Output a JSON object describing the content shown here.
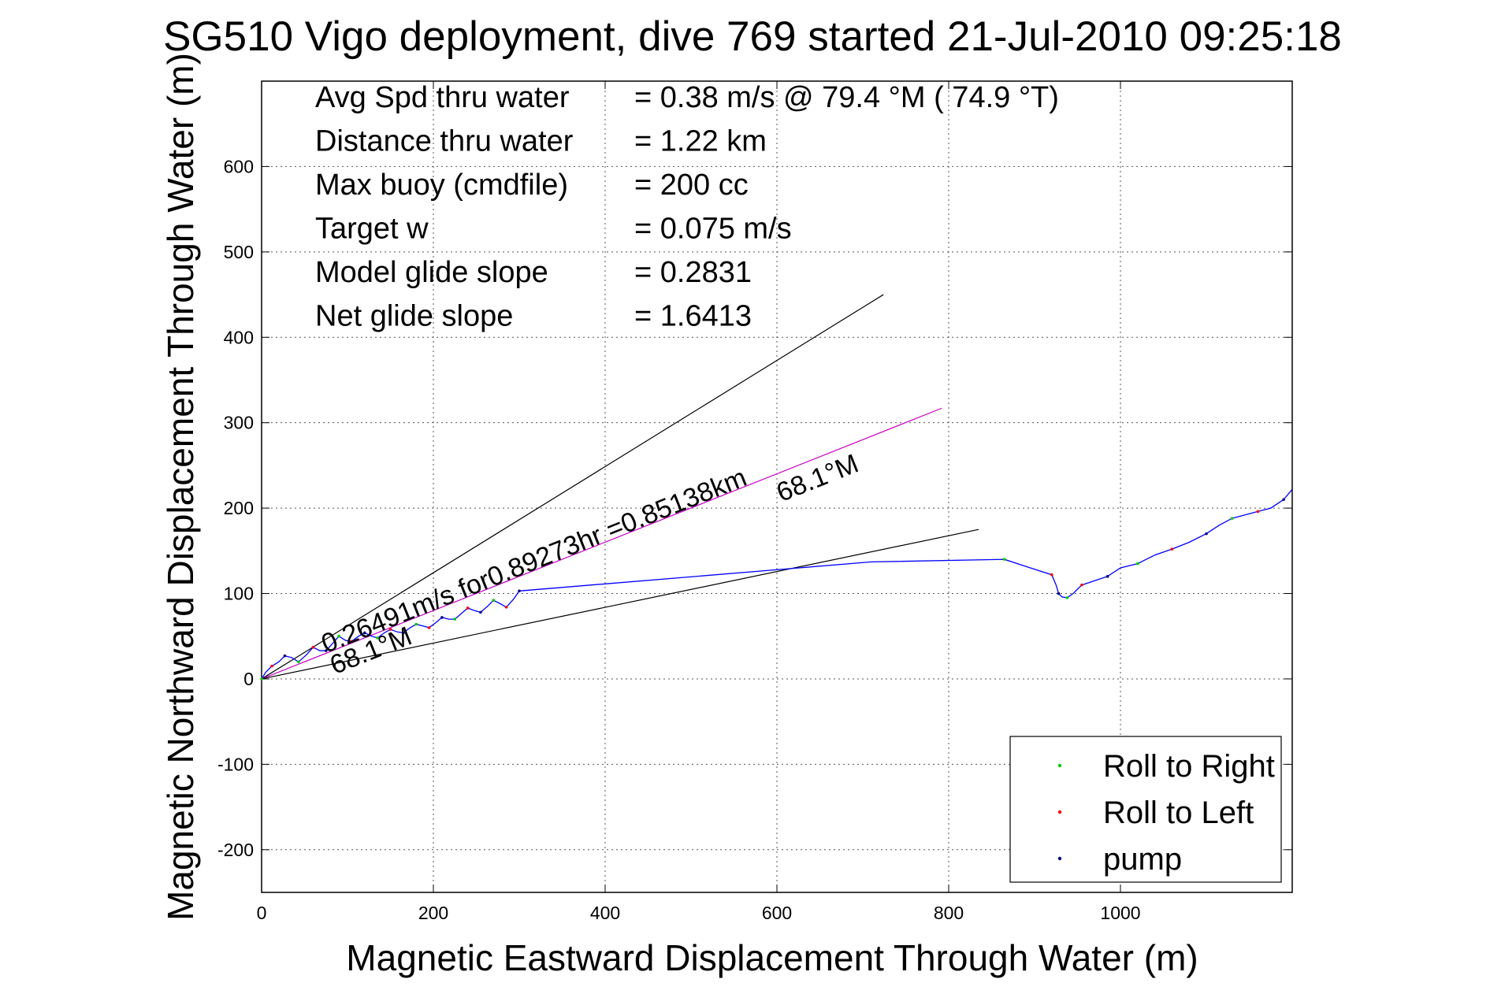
{
  "chart_data": {
    "type": "line",
    "title": "SG510 Vigo deployment, dive 769 started 21-Jul-2010 09:25:18",
    "xlabel": "Magnetic Eastward Displacement Through Water (m)",
    "ylabel": "Magnetic Northward Displacement Through Water (m)",
    "xlim": [
      0,
      1200
    ],
    "ylim": [
      -250,
      700
    ],
    "xticks": [
      0,
      200,
      400,
      600,
      800,
      1000
    ],
    "yticks": [
      -200,
      -100,
      0,
      100,
      200,
      300,
      400,
      500,
      600
    ],
    "grid": true,
    "info_lines": [
      {
        "label": "Avg Spd thru water",
        "value": "=  0.38 m/s @  79.4 °M ( 74.9 °T)"
      },
      {
        "label": "Distance thru water",
        "value": "=  1.22 km"
      },
      {
        "label": "Max buoy (cmdfile)",
        "value": "= 200 cc"
      },
      {
        "label": "Target w",
        "value": "= 0.075 m/s"
      },
      {
        "label": "Model glide slope",
        "value": "= 0.2831"
      },
      {
        "label": "Net glide slope",
        "value": "= 1.6413"
      }
    ],
    "annotations": [
      {
        "text": "0.26491m/s for0.89273hr =0.85138km",
        "at": [
          75,
          30
        ],
        "angle_deg": 21.8
      },
      {
        "text": "68.1°M",
        "at": [
          605,
          207
        ],
        "angle_deg": 21.8
      },
      {
        "text": "68.1°M",
        "at": [
          85,
          5
        ],
        "angle_deg": 21.8
      }
    ],
    "reference_lines": [
      {
        "name": "upper-bound",
        "color": "#000000",
        "x": [
          0,
          724
        ],
        "y": [
          0,
          450
        ]
      },
      {
        "name": "current-direction",
        "color": "#c800c8",
        "x": [
          0,
          792
        ],
        "y": [
          0,
          317
        ]
      },
      {
        "name": "lower-bound",
        "color": "#000000",
        "x": [
          0,
          835
        ],
        "y": [
          0,
          175
        ]
      }
    ],
    "series": [
      {
        "color": "#0000ff",
        "x": [
          0,
          5,
          12,
          20,
          27,
          35,
          43,
          52,
          60,
          68,
          75,
          83,
          90,
          98,
          105,
          113,
          120,
          128,
          135,
          143,
          150,
          158,
          165,
          173,
          180,
          188,
          195,
          203,
          210,
          218,
          225,
          233,
          240,
          248,
          255,
          263,
          270,
          278,
          285,
          293,
          300,
          710,
          865,
          895,
          920,
          925,
          928,
          932,
          938,
          945,
          955,
          970,
          985,
          1000,
          1020,
          1040,
          1060,
          1080,
          1100,
          1115,
          1130,
          1145,
          1160,
          1175,
          1190,
          1200
        ],
        "y": [
          0,
          8,
          15,
          20,
          27,
          25,
          20,
          28,
          37,
          33,
          33,
          42,
          50,
          45,
          44,
          50,
          54,
          50,
          48,
          54,
          58,
          55,
          54,
          60,
          64,
          62,
          60,
          66,
          72,
          70,
          70,
          77,
          83,
          80,
          78,
          85,
          92,
          88,
          84,
          93,
          103,
          137,
          140,
          130,
          122,
          110,
          100,
          96,
          95,
          100,
          110,
          115,
          120,
          130,
          135,
          145,
          152,
          160,
          170,
          180,
          188,
          192,
          196,
          200,
          210,
          222
        ]
      }
    ],
    "legend": {
      "placement": "bottom-right",
      "entries": [
        {
          "label": "Roll to Right",
          "color": "#00cc00"
        },
        {
          "label": "Roll to Left",
          "color": "#ff0000"
        },
        {
          "label": "pump",
          "color": "#000080"
        }
      ]
    }
  }
}
